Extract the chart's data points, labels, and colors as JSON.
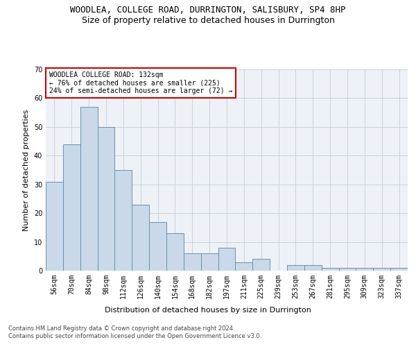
{
  "title": "WOODLEA, COLLEGE ROAD, DURRINGTON, SALISBURY, SP4 8HP",
  "subtitle": "Size of property relative to detached houses in Durrington",
  "xlabel": "Distribution of detached houses by size in Durrington",
  "ylabel": "Number of detached properties",
  "categories": [
    "56sqm",
    "70sqm",
    "84sqm",
    "98sqm",
    "112sqm",
    "126sqm",
    "140sqm",
    "154sqm",
    "168sqm",
    "182sqm",
    "197sqm",
    "211sqm",
    "225sqm",
    "239sqm",
    "253sqm",
    "267sqm",
    "281sqm",
    "295sqm",
    "309sqm",
    "323sqm",
    "337sqm"
  ],
  "values": [
    31,
    44,
    57,
    50,
    35,
    23,
    17,
    13,
    6,
    6,
    8,
    3,
    4,
    0,
    2,
    2,
    1,
    1,
    1,
    1,
    1
  ],
  "bar_color": "#c9d9e9",
  "bar_edge_color": "#6a8faf",
  "annotation_text": "WOODLEA COLLEGE ROAD: 132sqm\n← 76% of detached houses are smaller (225)\n24% of semi-detached houses are larger (72) →",
  "annotation_box_color": "#cc0000",
  "ylim": [
    0,
    70
  ],
  "yticks": [
    0,
    10,
    20,
    30,
    40,
    50,
    60,
    70
  ],
  "grid_color": "#c8d0dc",
  "background_color": "#eef2f7",
  "footer1": "Contains HM Land Registry data © Crown copyright and database right 2024.",
  "footer2": "Contains public sector information licensed under the Open Government Licence v3.0.",
  "title_fontsize": 9,
  "subtitle_fontsize": 9,
  "xlabel_fontsize": 8,
  "ylabel_fontsize": 8,
  "tick_fontsize": 7,
  "footer_fontsize": 6,
  "annotation_fontsize": 7
}
